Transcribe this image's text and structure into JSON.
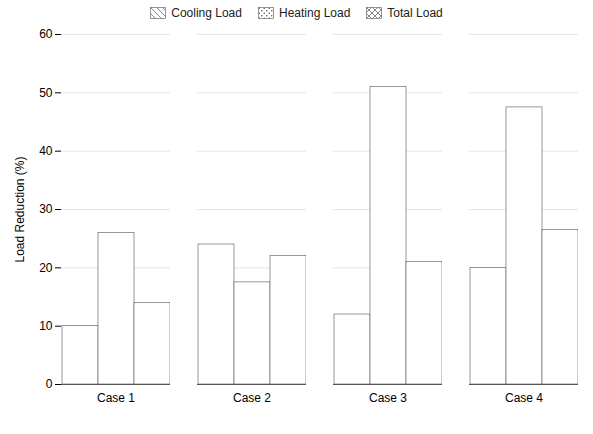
{
  "chart_data": {
    "type": "bar",
    "categories": [
      "Case 1",
      "Case 2",
      "Case 3",
      "Case 4"
    ],
    "series": [
      {
        "name": "Cooling Load",
        "color": "#ffffff",
        "values": [
          10,
          24,
          12,
          20
        ]
      },
      {
        "name": "Heating Load",
        "color": "#ffffff",
        "values": [
          26,
          17.5,
          51,
          47.5
        ]
      },
      {
        "name": "Total Load",
        "color": "#ffffff",
        "values": [
          14,
          22,
          21,
          26.5
        ]
      }
    ],
    "ylabel": "Load Reduction (%)",
    "ylim": [
      0,
      60
    ],
    "yticks": [
      0,
      10,
      20,
      30,
      40,
      50,
      60
    ],
    "grid": true,
    "legend": "top"
  }
}
